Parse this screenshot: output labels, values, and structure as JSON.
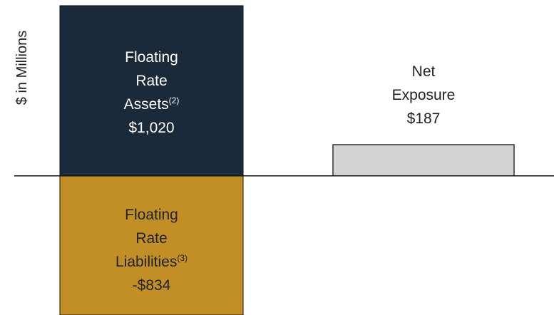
{
  "chart_data": {
    "type": "bar",
    "ylabel": "$ in Millions",
    "categories": [
      "Floating Rate Assets",
      "Floating Rate Liabilities",
      "Net Exposure"
    ],
    "footnotes": [
      "(2)",
      "(3)",
      null
    ],
    "values": [
      1020,
      -834,
      187
    ],
    "value_labels": [
      "$1,020",
      "-$834",
      "$187"
    ],
    "colors": [
      "#1b2a3a",
      "#c18f25",
      "#d3d3d3"
    ],
    "ylim": [
      -834,
      1054
    ]
  }
}
